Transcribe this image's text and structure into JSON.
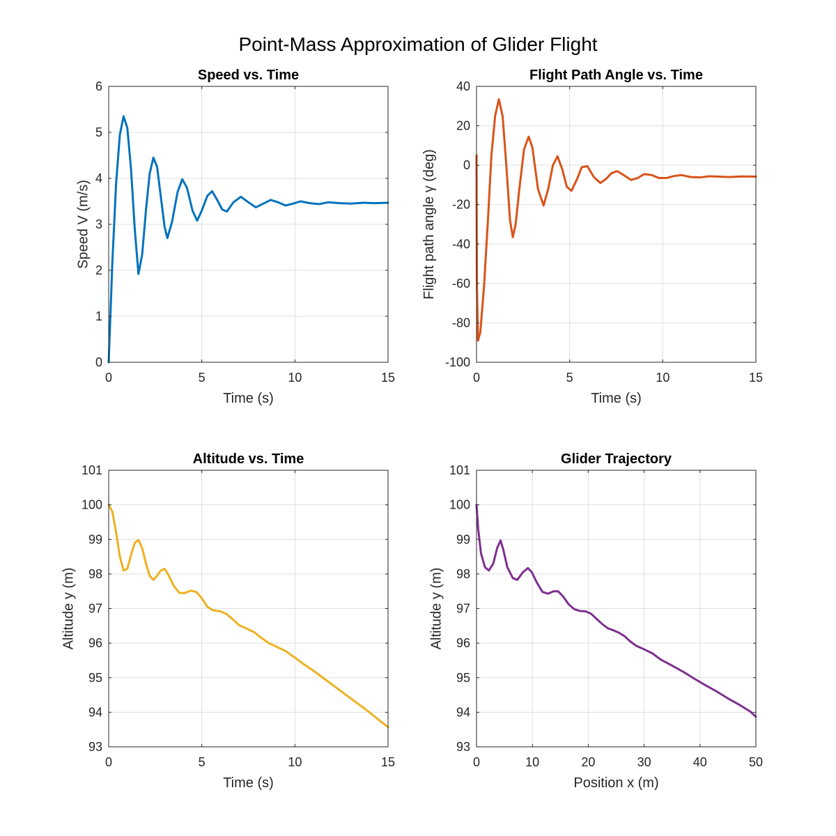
{
  "figure_title": "Point-Mass Approximation of Glider Flight",
  "chart_data": [
    {
      "type": "line",
      "title": "Speed vs. Time",
      "xlabel": "Time (s)",
      "ylabel": "Speed V (m/s)",
      "xlim": [
        0,
        15
      ],
      "ylim": [
        0,
        6
      ],
      "xticks": [
        0,
        5,
        10,
        15
      ],
      "yticks": [
        0,
        1,
        2,
        3,
        4,
        5,
        6
      ],
      "grid": true,
      "series": [
        {
          "color": "#0072BD",
          "points": [
            [
              0,
              0
            ],
            [
              0.2,
              2.2
            ],
            [
              0.4,
              3.9
            ],
            [
              0.6,
              4.95
            ],
            [
              0.8,
              5.35
            ],
            [
              1.0,
              5.1
            ],
            [
              1.2,
              4.2
            ],
            [
              1.4,
              2.9
            ],
            [
              1.6,
              1.92
            ],
            [
              1.8,
              2.35
            ],
            [
              2.0,
              3.3
            ],
            [
              2.2,
              4.1
            ],
            [
              2.4,
              4.45
            ],
            [
              2.6,
              4.25
            ],
            [
              2.8,
              3.6
            ],
            [
              3.0,
              2.95
            ],
            [
              3.15,
              2.7
            ],
            [
              3.4,
              3.05
            ],
            [
              3.7,
              3.7
            ],
            [
              3.95,
              3.98
            ],
            [
              4.2,
              3.8
            ],
            [
              4.5,
              3.3
            ],
            [
              4.75,
              3.08
            ],
            [
              5.0,
              3.3
            ],
            [
              5.3,
              3.62
            ],
            [
              5.55,
              3.72
            ],
            [
              5.8,
              3.55
            ],
            [
              6.1,
              3.32
            ],
            [
              6.35,
              3.28
            ],
            [
              6.7,
              3.48
            ],
            [
              7.1,
              3.6
            ],
            [
              7.5,
              3.48
            ],
            [
              7.9,
              3.37
            ],
            [
              8.3,
              3.45
            ],
            [
              8.7,
              3.53
            ],
            [
              9.1,
              3.48
            ],
            [
              9.5,
              3.41
            ],
            [
              9.9,
              3.45
            ],
            [
              10.3,
              3.5
            ],
            [
              10.8,
              3.46
            ],
            [
              11.3,
              3.44
            ],
            [
              11.8,
              3.48
            ],
            [
              12.4,
              3.46
            ],
            [
              13.0,
              3.45
            ],
            [
              13.7,
              3.47
            ],
            [
              14.3,
              3.46
            ],
            [
              15.0,
              3.47
            ]
          ]
        }
      ]
    },
    {
      "type": "line",
      "title": "Flight Path Angle vs. Time",
      "xlabel": "Time (s)",
      "ylabel": "Flight path angle γ (deg)",
      "xlim": [
        0,
        15
      ],
      "ylim": [
        -100,
        40
      ],
      "xticks": [
        0,
        5,
        10,
        15
      ],
      "yticks": [
        -100,
        -80,
        -60,
        -40,
        -20,
        0,
        20,
        40
      ],
      "grid": true,
      "series": [
        {
          "color": "#D95319",
          "points": [
            [
              0,
              5
            ],
            [
              0.02,
              -60
            ],
            [
              0.08,
              -89
            ],
            [
              0.2,
              -85
            ],
            [
              0.4,
              -62
            ],
            [
              0.6,
              -30
            ],
            [
              0.8,
              5
            ],
            [
              1.0,
              25
            ],
            [
              1.2,
              33.5
            ],
            [
              1.4,
              25
            ],
            [
              1.6,
              0
            ],
            [
              1.8,
              -28
            ],
            [
              1.95,
              -36.5
            ],
            [
              2.1,
              -30
            ],
            [
              2.3,
              -12
            ],
            [
              2.55,
              8
            ],
            [
              2.8,
              14.5
            ],
            [
              3.0,
              9
            ],
            [
              3.3,
              -12
            ],
            [
              3.6,
              -20.5
            ],
            [
              3.85,
              -12
            ],
            [
              4.1,
              0
            ],
            [
              4.35,
              4.5
            ],
            [
              4.6,
              -2
            ],
            [
              4.85,
              -11
            ],
            [
              5.1,
              -13
            ],
            [
              5.4,
              -7
            ],
            [
              5.65,
              -1
            ],
            [
              5.95,
              -0.5
            ],
            [
              6.3,
              -6
            ],
            [
              6.65,
              -9
            ],
            [
              6.95,
              -7
            ],
            [
              7.25,
              -4
            ],
            [
              7.55,
              -3
            ],
            [
              7.9,
              -5
            ],
            [
              8.3,
              -7.5
            ],
            [
              8.65,
              -6.5
            ],
            [
              9.0,
              -4.5
            ],
            [
              9.4,
              -5
            ],
            [
              9.8,
              -6.5
            ],
            [
              10.2,
              -6.5
            ],
            [
              10.6,
              -5.5
            ],
            [
              11.0,
              -5
            ],
            [
              11.5,
              -6
            ],
            [
              12.0,
              -6.2
            ],
            [
              12.5,
              -5.6
            ],
            [
              13.0,
              -5.8
            ],
            [
              13.6,
              -6
            ],
            [
              14.2,
              -5.7
            ],
            [
              15.0,
              -5.8
            ]
          ]
        }
      ]
    },
    {
      "type": "line",
      "title": "Altitude vs. Time",
      "xlabel": "Time (s)",
      "ylabel": "Altitude y (m)",
      "xlim": [
        0,
        15
      ],
      "ylim": [
        93,
        101
      ],
      "xticks": [
        0,
        5,
        10,
        15
      ],
      "yticks": [
        93,
        94,
        95,
        96,
        97,
        98,
        99,
        100,
        101
      ],
      "grid": true,
      "series": [
        {
          "color": "#EDB120",
          "points": [
            [
              0,
              100
            ],
            [
              0.2,
              99.8
            ],
            [
              0.4,
              99.2
            ],
            [
              0.6,
              98.5
            ],
            [
              0.8,
              98.1
            ],
            [
              1.0,
              98.15
            ],
            [
              1.2,
              98.55
            ],
            [
              1.4,
              98.9
            ],
            [
              1.6,
              98.98
            ],
            [
              1.8,
              98.75
            ],
            [
              2.0,
              98.3
            ],
            [
              2.2,
              97.95
            ],
            [
              2.4,
              97.83
            ],
            [
              2.6,
              97.95
            ],
            [
              2.8,
              98.1
            ],
            [
              3.0,
              98.15
            ],
            [
              3.2,
              97.98
            ],
            [
              3.5,
              97.65
            ],
            [
              3.8,
              97.45
            ],
            [
              4.1,
              97.45
            ],
            [
              4.4,
              97.52
            ],
            [
              4.7,
              97.48
            ],
            [
              5.0,
              97.3
            ],
            [
              5.3,
              97.05
            ],
            [
              5.6,
              96.95
            ],
            [
              6.0,
              96.92
            ],
            [
              6.3,
              96.85
            ],
            [
              6.6,
              96.72
            ],
            [
              7.0,
              96.52
            ],
            [
              7.4,
              96.42
            ],
            [
              7.8,
              96.32
            ],
            [
              8.2,
              96.15
            ],
            [
              8.6,
              96.0
            ],
            [
              9.0,
              95.9
            ],
            [
              9.5,
              95.77
            ],
            [
              10.0,
              95.58
            ],
            [
              10.5,
              95.38
            ],
            [
              11.0,
              95.2
            ],
            [
              11.5,
              95.0
            ],
            [
              12.0,
              94.8
            ],
            [
              12.5,
              94.6
            ],
            [
              13.0,
              94.4
            ],
            [
              13.5,
              94.2
            ],
            [
              14.0,
              94.0
            ],
            [
              14.5,
              93.78
            ],
            [
              15.0,
              93.57
            ]
          ]
        }
      ]
    },
    {
      "type": "line",
      "title": "Glider Trajectory",
      "xlabel": "Position x (m)",
      "ylabel": "Altitude y (m)",
      "xlim": [
        0,
        50
      ],
      "ylim": [
        93,
        101
      ],
      "xticks": [
        0,
        10,
        20,
        30,
        40,
        50
      ],
      "yticks": [
        93,
        94,
        95,
        96,
        97,
        98,
        99,
        100,
        101
      ],
      "grid": true,
      "series": [
        {
          "color": "#7E2F8E",
          "points": [
            [
              0,
              100
            ],
            [
              0.3,
              99.3
            ],
            [
              0.8,
              98.6
            ],
            [
              1.5,
              98.2
            ],
            [
              2.2,
              98.1
            ],
            [
              3.0,
              98.3
            ],
            [
              3.7,
              98.75
            ],
            [
              4.3,
              98.97
            ],
            [
              4.8,
              98.7
            ],
            [
              5.5,
              98.2
            ],
            [
              6.5,
              97.88
            ],
            [
              7.3,
              97.83
            ],
            [
              8.3,
              98.05
            ],
            [
              9.2,
              98.17
            ],
            [
              9.9,
              98.05
            ],
            [
              10.8,
              97.75
            ],
            [
              11.8,
              97.48
            ],
            [
              12.8,
              97.43
            ],
            [
              13.8,
              97.5
            ],
            [
              14.6,
              97.5
            ],
            [
              15.5,
              97.35
            ],
            [
              16.5,
              97.12
            ],
            [
              17.5,
              96.98
            ],
            [
              18.5,
              96.93
            ],
            [
              19.5,
              96.92
            ],
            [
              20.5,
              96.85
            ],
            [
              21.5,
              96.7
            ],
            [
              22.5,
              96.55
            ],
            [
              23.5,
              96.43
            ],
            [
              24.5,
              96.37
            ],
            [
              25.5,
              96.3
            ],
            [
              26.5,
              96.2
            ],
            [
              27.5,
              96.05
            ],
            [
              28.5,
              95.93
            ],
            [
              30.0,
              95.82
            ],
            [
              31.5,
              95.7
            ],
            [
              33.0,
              95.52
            ],
            [
              35.0,
              95.35
            ],
            [
              37.0,
              95.17
            ],
            [
              39.0,
              94.97
            ],
            [
              41.0,
              94.78
            ],
            [
              43.0,
              94.6
            ],
            [
              45.0,
              94.4
            ],
            [
              47.0,
              94.22
            ],
            [
              49.0,
              94.02
            ],
            [
              50.0,
              93.87
            ]
          ]
        }
      ]
    }
  ]
}
